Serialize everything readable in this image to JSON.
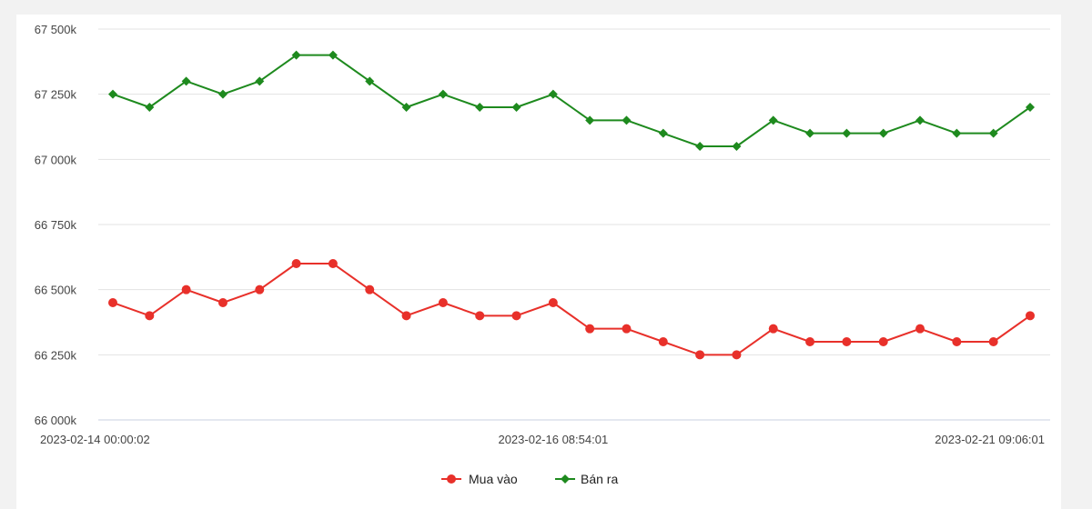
{
  "chart_data": {
    "type": "line",
    "title": "",
    "xlabel": "",
    "ylabel": "",
    "ylim": [
      66000,
      67500
    ],
    "y_ticks": [
      {
        "value": 66000,
        "label": "66 000k"
      },
      {
        "value": 66250,
        "label": "66 250k"
      },
      {
        "value": 66500,
        "label": "66 500k"
      },
      {
        "value": 66750,
        "label": "66 750k"
      },
      {
        "value": 67000,
        "label": "67 000k"
      },
      {
        "value": 67250,
        "label": "67 250k"
      },
      {
        "value": 67500,
        "label": "67 500k"
      }
    ],
    "x_tick_labels": [
      {
        "index": 0,
        "label": "2023-02-14 00:00:02"
      },
      {
        "index": 12,
        "label": "2023-02-16 08:54:01"
      },
      {
        "index": 25,
        "label": "2023-02-21 09:06:01"
      }
    ],
    "point_count": 26,
    "grid": true,
    "legend_position": "bottom",
    "series": [
      {
        "name": "Mua vào",
        "color": "#e8302a",
        "marker": "circle",
        "values": [
          66450,
          66400,
          66500,
          66450,
          66500,
          66600,
          66600,
          66500,
          66400,
          66450,
          66400,
          66400,
          66450,
          66350,
          66350,
          66300,
          66250,
          66250,
          66350,
          66300,
          66300,
          66300,
          66350,
          66300,
          66300,
          66400
        ]
      },
      {
        "name": "Bán ra",
        "color": "#1e8a1e",
        "marker": "diamond",
        "values": [
          67250,
          67200,
          67300,
          67250,
          67300,
          67400,
          67400,
          67300,
          67200,
          67250,
          67200,
          67200,
          67250,
          67150,
          67150,
          67100,
          67050,
          67050,
          67150,
          67100,
          67100,
          67100,
          67150,
          67100,
          67100,
          67200
        ]
      }
    ]
  }
}
